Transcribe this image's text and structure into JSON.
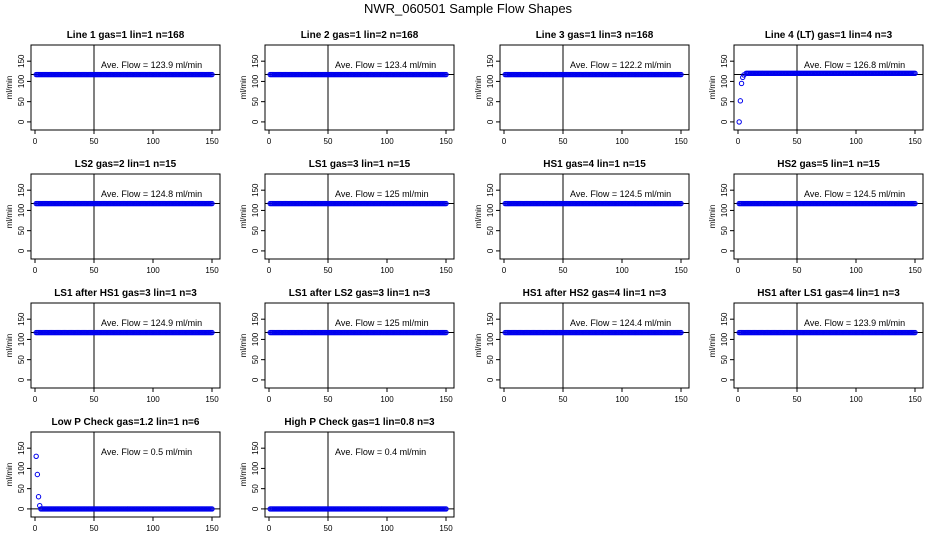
{
  "title": "NWR_060501  Sample Flow Shapes",
  "colors": {
    "points": "#0000ee",
    "axes": "#000000",
    "background": "#ffffff"
  },
  "chart_data": [
    {
      "type": "scatter",
      "title": "Line 1 gas=1 lin=1 n=168",
      "ylabel": "ml/min",
      "xlim": [
        0,
        150
      ],
      "ylim": [
        -20,
        190
      ],
      "xticks": [
        0,
        50,
        100,
        150
      ],
      "yticks": [
        0,
        50,
        100,
        150
      ],
      "hline": 117,
      "vline": 50,
      "annotation": "Ave. Flow = 123.9  ml/min",
      "series": [
        {
          "name": "flow",
          "x_range": [
            1,
            150
          ],
          "value": 117
        }
      ]
    },
    {
      "type": "scatter",
      "title": "Line 2 gas=1 lin=2 n=168",
      "ylabel": "ml/min",
      "xlim": [
        0,
        150
      ],
      "ylim": [
        -20,
        190
      ],
      "xticks": [
        0,
        50,
        100,
        150
      ],
      "yticks": [
        0,
        50,
        100,
        150
      ],
      "hline": 117,
      "vline": 50,
      "annotation": "Ave. Flow = 123.4  ml/min",
      "series": [
        {
          "name": "flow",
          "x_range": [
            1,
            150
          ],
          "value": 117
        }
      ]
    },
    {
      "type": "scatter",
      "title": "Line 3 gas=1 lin=3 n=168",
      "ylabel": "ml/min",
      "xlim": [
        0,
        150
      ],
      "ylim": [
        -20,
        190
      ],
      "xticks": [
        0,
        50,
        100,
        150
      ],
      "yticks": [
        0,
        50,
        100,
        150
      ],
      "hline": 117,
      "vline": 50,
      "annotation": "Ave. Flow = 122.2  ml/min",
      "series": [
        {
          "name": "flow",
          "x_range": [
            1,
            150
          ],
          "value": 117
        }
      ]
    },
    {
      "type": "scatter",
      "title": "Line 4 (LT) gas=1 lin=4 n=3",
      "ylabel": "ml/min",
      "xlim": [
        0,
        150
      ],
      "ylim": [
        -20,
        190
      ],
      "xticks": [
        0,
        50,
        100,
        150
      ],
      "yticks": [
        0,
        50,
        100,
        150
      ],
      "hline": 117,
      "vline": 50,
      "annotation": "Ave. Flow = 126.8  ml/min",
      "series": [
        {
          "name": "flow",
          "x_range": [
            7,
            150
          ],
          "value": 120,
          "startup": [
            [
              1,
              0
            ],
            [
              2,
              52
            ],
            [
              3,
              95
            ],
            [
              4,
              110
            ],
            [
              5,
              116
            ]
          ]
        }
      ]
    },
    {
      "type": "scatter",
      "title": "LS2 gas=2 lin=1 n=15",
      "ylabel": "ml/min",
      "xlim": [
        0,
        150
      ],
      "ylim": [
        -20,
        190
      ],
      "xticks": [
        0,
        50,
        100,
        150
      ],
      "yticks": [
        0,
        50,
        100,
        150
      ],
      "hline": 117,
      "vline": 50,
      "annotation": "Ave. Flow = 124.8  ml/min",
      "series": [
        {
          "name": "flow",
          "x_range": [
            1,
            150
          ],
          "value": 117
        }
      ]
    },
    {
      "type": "scatter",
      "title": "LS1 gas=3 lin=1 n=15",
      "ylabel": "ml/min",
      "xlim": [
        0,
        150
      ],
      "ylim": [
        -20,
        190
      ],
      "xticks": [
        0,
        50,
        100,
        150
      ],
      "yticks": [
        0,
        50,
        100,
        150
      ],
      "hline": 117,
      "vline": 50,
      "annotation": "Ave. Flow = 125  ml/min",
      "series": [
        {
          "name": "flow",
          "x_range": [
            1,
            150
          ],
          "value": 117
        }
      ]
    },
    {
      "type": "scatter",
      "title": "HS1 gas=4 lin=1 n=15",
      "ylabel": "ml/min",
      "xlim": [
        0,
        150
      ],
      "ylim": [
        -20,
        190
      ],
      "xticks": [
        0,
        50,
        100,
        150
      ],
      "yticks": [
        0,
        50,
        100,
        150
      ],
      "hline": 117,
      "vline": 50,
      "annotation": "Ave. Flow = 124.5  ml/min",
      "series": [
        {
          "name": "flow",
          "x_range": [
            1,
            150
          ],
          "value": 117
        }
      ]
    },
    {
      "type": "scatter",
      "title": "HS2 gas=5 lin=1 n=15",
      "ylabel": "ml/min",
      "xlim": [
        0,
        150
      ],
      "ylim": [
        -20,
        190
      ],
      "xticks": [
        0,
        50,
        100,
        150
      ],
      "yticks": [
        0,
        50,
        100,
        150
      ],
      "hline": 117,
      "vline": 50,
      "annotation": "Ave. Flow = 124.5  ml/min",
      "series": [
        {
          "name": "flow",
          "x_range": [
            1,
            150
          ],
          "value": 117
        }
      ]
    },
    {
      "type": "scatter",
      "title": "LS1 after HS1 gas=3 lin=1 n=3",
      "ylabel": "ml/min",
      "xlim": [
        0,
        150
      ],
      "ylim": [
        -20,
        190
      ],
      "xticks": [
        0,
        50,
        100,
        150
      ],
      "yticks": [
        0,
        50,
        100,
        150
      ],
      "hline": 117,
      "vline": 50,
      "annotation": "Ave. Flow = 124.9  ml/min",
      "series": [
        {
          "name": "flow",
          "x_range": [
            1,
            150
          ],
          "value": 117
        }
      ]
    },
    {
      "type": "scatter",
      "title": "LS1 after LS2 gas=3 lin=1 n=3",
      "ylabel": "ml/min",
      "xlim": [
        0,
        150
      ],
      "ylim": [
        -20,
        190
      ],
      "xticks": [
        0,
        50,
        100,
        150
      ],
      "yticks": [
        0,
        50,
        100,
        150
      ],
      "hline": 117,
      "vline": 50,
      "annotation": "Ave. Flow = 125  ml/min",
      "series": [
        {
          "name": "flow",
          "x_range": [
            1,
            150
          ],
          "value": 117
        }
      ]
    },
    {
      "type": "scatter",
      "title": "HS1 after HS2 gas=4 lin=1 n=3",
      "ylabel": "ml/min",
      "xlim": [
        0,
        150
      ],
      "ylim": [
        -20,
        190
      ],
      "xticks": [
        0,
        50,
        100,
        150
      ],
      "yticks": [
        0,
        50,
        100,
        150
      ],
      "hline": 117,
      "vline": 50,
      "annotation": "Ave. Flow = 124.4  ml/min",
      "series": [
        {
          "name": "flow",
          "x_range": [
            1,
            150
          ],
          "value": 117
        }
      ]
    },
    {
      "type": "scatter",
      "title": "HS1 after LS1 gas=4 lin=1 n=3",
      "ylabel": "ml/min",
      "xlim": [
        0,
        150
      ],
      "ylim": [
        -20,
        190
      ],
      "xticks": [
        0,
        50,
        100,
        150
      ],
      "yticks": [
        0,
        50,
        100,
        150
      ],
      "hline": 117,
      "vline": 50,
      "annotation": "Ave. Flow = 123.9  ml/min",
      "series": [
        {
          "name": "flow",
          "x_range": [
            1,
            150
          ],
          "value": 117
        }
      ]
    },
    {
      "type": "scatter",
      "title": "Low P Check gas=1.2 lin=1 n=6",
      "ylabel": "ml/min",
      "xlim": [
        0,
        150
      ],
      "ylim": [
        -20,
        190
      ],
      "xticks": [
        0,
        50,
        100,
        150
      ],
      "yticks": [
        0,
        50,
        100,
        150
      ],
      "hline": 0,
      "vline": 50,
      "annotation": "Ave. Flow = 0.5  ml/min",
      "series": [
        {
          "name": "flow",
          "x_range": [
            5,
            150
          ],
          "value": 0,
          "startup": [
            [
              1,
              130
            ],
            [
              2,
              85
            ],
            [
              3,
              30
            ],
            [
              4,
              8
            ]
          ]
        }
      ]
    },
    {
      "type": "scatter",
      "title": "High P Check gas=1 lin=0.8 n=3",
      "ylabel": "ml/min",
      "xlim": [
        0,
        150
      ],
      "ylim": [
        -20,
        190
      ],
      "xticks": [
        0,
        50,
        100,
        150
      ],
      "yticks": [
        0,
        50,
        100,
        150
      ],
      "hline": 0,
      "vline": 50,
      "annotation": "Ave. Flow = 0.4  ml/min",
      "series": [
        {
          "name": "flow",
          "x_range": [
            1,
            150
          ],
          "value": 0
        }
      ]
    }
  ]
}
